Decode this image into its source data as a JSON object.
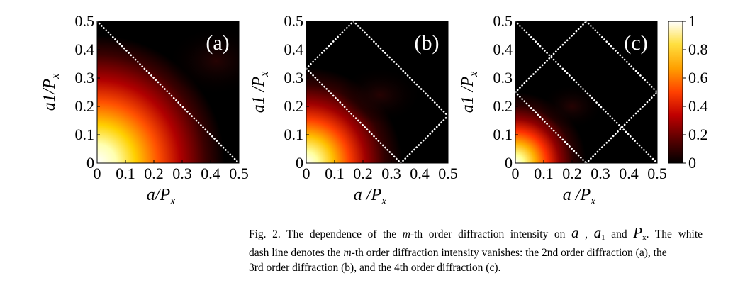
{
  "chart_data": [
    {
      "type": "heatmap",
      "panel_label": "(a)",
      "xlabel": "a/Px",
      "ylabel": "a1/Px",
      "xlim": [
        0,
        0.5
      ],
      "ylim": [
        0,
        0.5
      ],
      "xticks": [
        "0",
        "0.1",
        "0.2",
        "0.3",
        "0.4",
        "0.5"
      ],
      "yticks": [
        "0",
        "0.1",
        "0.2",
        "0.3",
        "0.4",
        "0.5"
      ],
      "order": 2,
      "intensity_peak": {
        "x": 0,
        "y": 0,
        "value": 1
      },
      "zero_lines": [
        {
          "from": [
            0,
            0.5
          ],
          "to": [
            0.5,
            0
          ]
        }
      ]
    },
    {
      "type": "heatmap",
      "panel_label": "(b)",
      "xlabel": "a /Px",
      "ylabel": "a1 /Px",
      "xlim": [
        0,
        0.5
      ],
      "ylim": [
        0,
        0.5
      ],
      "xticks": [
        "0",
        "0.1",
        "0.2",
        "0.3",
        "0.4",
        "0.5"
      ],
      "yticks": [
        "0",
        "0.1",
        "0.2",
        "0.3",
        "0.4",
        "0.5"
      ],
      "order": 3,
      "intensity_peak": {
        "x": 0,
        "y": 0,
        "value": 1
      },
      "zero_lines": [
        {
          "from": [
            0,
            0.3333
          ],
          "to": [
            0.1667,
            0.5
          ]
        },
        {
          "from": [
            0,
            0.3333
          ],
          "to": [
            0.3333,
            0
          ]
        },
        {
          "from": [
            0.1667,
            0.5
          ],
          "to": [
            0.5,
            0.1667
          ]
        },
        {
          "from": [
            0.3333,
            0
          ],
          "to": [
            0.5,
            0.1667
          ]
        }
      ]
    },
    {
      "type": "heatmap",
      "panel_label": "(c)",
      "xlabel": "a /Px",
      "ylabel": "a1 /Px",
      "xlim": [
        0,
        0.5
      ],
      "ylim": [
        0,
        0.5
      ],
      "xticks": [
        "0",
        "0.1",
        "0.2",
        "0.3",
        "0.4",
        "0.5"
      ],
      "yticks": [
        "0",
        "0.1",
        "0.2",
        "0.3",
        "0.4",
        "0.5"
      ],
      "order": 4,
      "intensity_peak": {
        "x": 0,
        "y": 0,
        "value": 1
      },
      "zero_lines": [
        {
          "from": [
            0,
            0.5
          ],
          "to": [
            0.5,
            0
          ]
        },
        {
          "from": [
            0,
            0.25
          ],
          "to": [
            0.25,
            0.5
          ]
        },
        {
          "from": [
            0,
            0.25
          ],
          "to": [
            0.25,
            0
          ]
        },
        {
          "from": [
            0.25,
            0.5
          ],
          "to": [
            0.5,
            0.25
          ]
        },
        {
          "from": [
            0.25,
            0
          ],
          "to": [
            0.5,
            0.25
          ]
        }
      ]
    }
  ],
  "colorbar": {
    "min": 0,
    "max": 1,
    "ticks": [
      "0",
      "0.2",
      "0.4",
      "0.6",
      "0.8",
      "1"
    ],
    "colors": [
      "#000000",
      "#5a0000",
      "#c00000",
      "#ff4000",
      "#ffa000",
      "#ffe040",
      "#ffffff"
    ]
  },
  "caption": {
    "line1_part1": "Fig. 2. The dependence of the",
    "line1_m": "m",
    "line1_part2": "-th order diffraction intensity on",
    "sym_a": "a",
    "comma1": ",",
    "sym_a1_base": "a",
    "sym_a1_sub": "1",
    "and_word": "and",
    "sym_Px_base": "P",
    "sym_Px_sub": "x",
    "line1_end": ". The white",
    "line2_part1": "dash line denotes the",
    "line2_m": "m",
    "line2_part2": "-th order diffraction intensity vanishes: the 2nd order diffraction (a), the",
    "line3": "3rd order diffraction (b), and the 4th order diffraction (c)."
  }
}
